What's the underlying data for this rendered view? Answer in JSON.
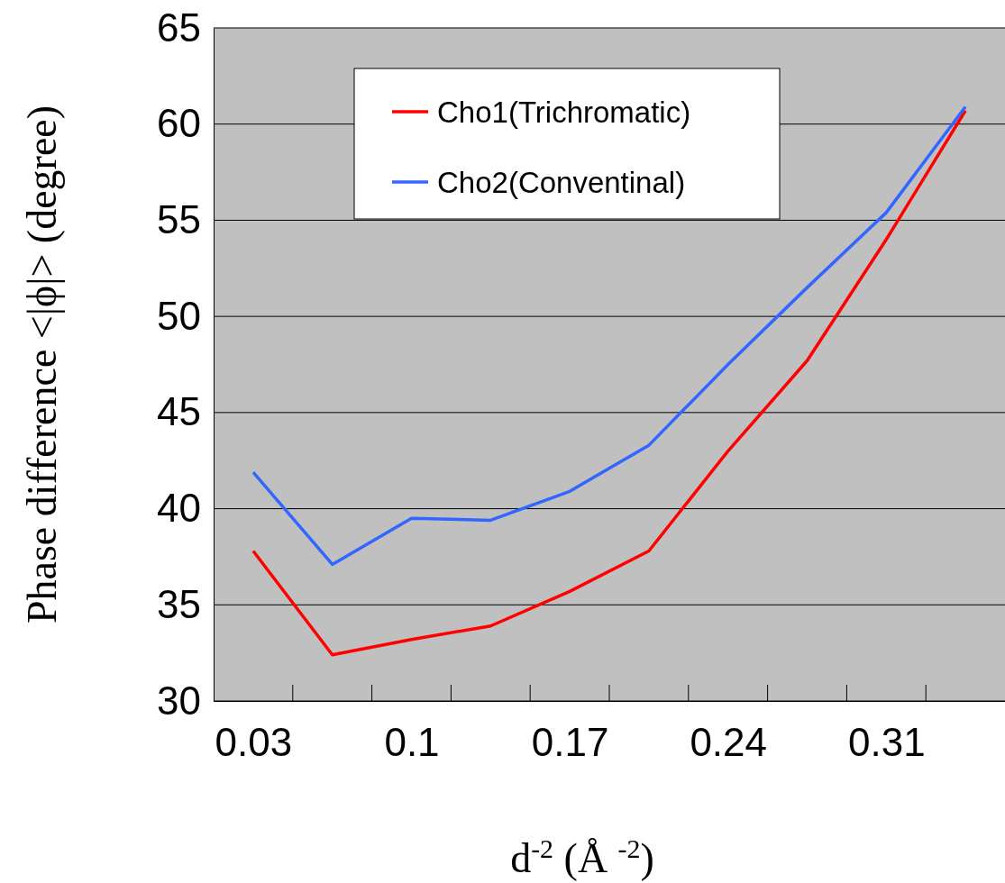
{
  "chart_data": {
    "type": "line",
    "xlabel": "d$^{-2}$ (Å $^{-2}$)",
    "ylabel": "Phase difference <|ϕ|> (degree)",
    "categories": [
      "0.03",
      null,
      "0.1",
      null,
      "0.17",
      null,
      "0.24",
      null,
      "0.31",
      null
    ],
    "series": [
      {
        "name": "Cho1(Trichromatic)",
        "color": "#ff0000",
        "values": [
          37.8,
          32.4,
          33.2,
          33.9,
          35.7,
          37.8,
          43.0,
          47.7,
          54.0,
          60.7
        ]
      },
      {
        "name": "Cho2(Conventinal)",
        "color": "#3366ff",
        "values": [
          41.9,
          37.1,
          39.5,
          39.4,
          40.9,
          43.3,
          47.5,
          51.5,
          55.4,
          60.9
        ]
      }
    ],
    "ylim": [
      30,
      65
    ],
    "yticks": [
      30,
      35,
      40,
      45,
      50,
      55,
      60,
      65
    ],
    "grid": "y",
    "legend": "top",
    "marker": "none",
    "line_style": "solid"
  }
}
